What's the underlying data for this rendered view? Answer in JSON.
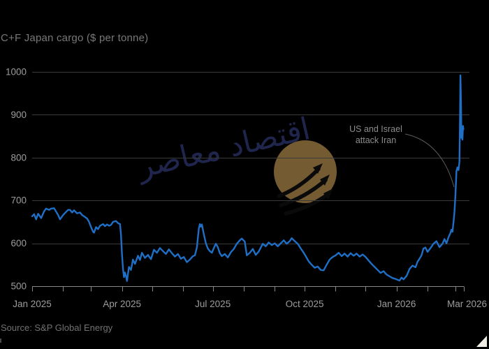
{
  "title": "C+F Japan cargo ($ per tonne)",
  "source": "Source: S&P Global Energy",
  "annotation": {
    "line1": "US and Israel",
    "line2": "attack Iran"
  },
  "watermark": {
    "arabic_text": "اقتصاد معاصر"
  },
  "colors": {
    "background": "#000000",
    "line": "#1e6fc5",
    "gridline": "#3a3a3a",
    "axis": "#888888",
    "tick_label": "#9c9c9c",
    "annotation_text": "#8c8c8c",
    "annotation_curve": "#5e5e5e",
    "watermark_gold": "#7d6136",
    "watermark_arrow": "#0b0b0b",
    "corner_triangle": "#efece4"
  },
  "chart_data": {
    "type": "line",
    "title": "C+F Japan cargo ($ per tonne)",
    "ylabel": "$ per tonne",
    "ylim": [
      500,
      1000
    ],
    "y_ticks": [
      1000,
      900,
      800,
      700,
      600,
      500
    ],
    "x_unit": "days since 2025-01-01",
    "xlim": [
      0,
      433
    ],
    "grid": "horizontal",
    "legend": "none",
    "annotation": "US and Israel attack Iran (points at March 2026 price spike)",
    "x_ticks": [
      {
        "day": 0,
        "label": "Jan 2025"
      },
      {
        "day": 31,
        "label": ""
      },
      {
        "day": 59,
        "label": ""
      },
      {
        "day": 90,
        "label": "Apr 2025"
      },
      {
        "day": 120,
        "label": ""
      },
      {
        "day": 151,
        "label": ""
      },
      {
        "day": 181,
        "label": "Jul 2025"
      },
      {
        "day": 212,
        "label": ""
      },
      {
        "day": 243,
        "label": ""
      },
      {
        "day": 273,
        "label": "Oct 2025"
      },
      {
        "day": 304,
        "label": ""
      },
      {
        "day": 334,
        "label": ""
      },
      {
        "day": 365,
        "label": "Jan 2026"
      },
      {
        "day": 396,
        "label": ""
      },
      {
        "day": 424,
        "label": "Mar 2026"
      }
    ],
    "series": [
      {
        "name": "C+F Japan cargo",
        "color": "#1e6fc5",
        "points": [
          [
            0,
            663
          ],
          [
            2,
            668
          ],
          [
            4,
            656
          ],
          [
            6,
            669
          ],
          [
            9,
            659
          ],
          [
            12,
            675
          ],
          [
            14,
            681
          ],
          [
            17,
            678
          ],
          [
            19,
            681
          ],
          [
            22,
            682
          ],
          [
            24,
            674
          ],
          [
            26,
            666
          ],
          [
            28,
            656
          ],
          [
            31,
            666
          ],
          [
            33,
            671
          ],
          [
            36,
            678
          ],
          [
            38,
            678
          ],
          [
            40,
            672
          ],
          [
            42,
            677
          ],
          [
            45,
            670
          ],
          [
            48,
            672
          ],
          [
            50,
            666
          ],
          [
            52,
            663
          ],
          [
            55,
            658
          ],
          [
            57,
            650
          ],
          [
            59,
            638
          ],
          [
            61,
            627
          ],
          [
            62,
            625
          ],
          [
            64,
            638
          ],
          [
            66,
            633
          ],
          [
            68,
            641
          ],
          [
            71,
            645
          ],
          [
            73,
            640
          ],
          [
            75,
            644
          ],
          [
            77,
            641
          ],
          [
            79,
            643
          ],
          [
            81,
            650
          ],
          [
            84,
            652
          ],
          [
            86,
            647
          ],
          [
            88,
            645
          ],
          [
            89,
            620
          ],
          [
            90,
            575
          ],
          [
            91,
            540
          ],
          [
            92,
            521
          ],
          [
            93,
            532
          ],
          [
            94,
            524
          ],
          [
            95,
            512
          ],
          [
            97,
            545
          ],
          [
            99,
            538
          ],
          [
            101,
            562
          ],
          [
            103,
            552
          ],
          [
            106,
            571
          ],
          [
            108,
            561
          ],
          [
            110,
            578
          ],
          [
            113,
            566
          ],
          [
            116,
            573
          ],
          [
            119,
            563
          ],
          [
            122,
            585
          ],
          [
            125,
            578
          ],
          [
            128,
            589
          ],
          [
            131,
            582
          ],
          [
            134,
            575
          ],
          [
            137,
            586
          ],
          [
            140,
            577
          ],
          [
            143,
            569
          ],
          [
            146,
            575
          ],
          [
            149,
            564
          ],
          [
            152,
            568
          ],
          [
            155,
            556
          ],
          [
            158,
            562
          ],
          [
            161,
            570
          ],
          [
            163,
            572
          ],
          [
            165,
            590
          ],
          [
            166,
            612
          ],
          [
            167,
            635
          ],
          [
            168,
            645
          ],
          [
            169,
            639
          ],
          [
            170,
            644
          ],
          [
            172,
            621
          ],
          [
            174,
            600
          ],
          [
            176,
            588
          ],
          [
            178,
            582
          ],
          [
            180,
            578
          ],
          [
            182,
            589
          ],
          [
            184,
            599
          ],
          [
            186,
            591
          ],
          [
            188,
            577
          ],
          [
            190,
            570
          ],
          [
            193,
            575
          ],
          [
            196,
            567
          ],
          [
            199,
            579
          ],
          [
            202,
            587
          ],
          [
            205,
            599
          ],
          [
            208,
            607
          ],
          [
            210,
            611
          ],
          [
            213,
            604
          ],
          [
            215,
            572
          ],
          [
            218,
            578
          ],
          [
            221,
            587
          ],
          [
            224,
            573
          ],
          [
            227,
            581
          ],
          [
            231,
            599
          ],
          [
            234,
            593
          ],
          [
            237,
            602
          ],
          [
            240,
            596
          ],
          [
            243,
            600
          ],
          [
            246,
            593
          ],
          [
            249,
            600
          ],
          [
            252,
            607
          ],
          [
            255,
            599
          ],
          [
            258,
            605
          ],
          [
            260,
            612
          ],
          [
            263,
            605
          ],
          [
            266,
            599
          ],
          [
            269,
            588
          ],
          [
            272,
            578
          ],
          [
            274,
            570
          ],
          [
            277,
            558
          ],
          [
            280,
            550
          ],
          [
            283,
            543
          ],
          [
            286,
            546
          ],
          [
            289,
            538
          ],
          [
            292,
            537
          ],
          [
            295,
            550
          ],
          [
            298,
            562
          ],
          [
            301,
            568
          ],
          [
            304,
            572
          ],
          [
            307,
            578
          ],
          [
            310,
            570
          ],
          [
            313,
            576
          ],
          [
            316,
            569
          ],
          [
            319,
            577
          ],
          [
            322,
            571
          ],
          [
            325,
            576
          ],
          [
            328,
            569
          ],
          [
            331,
            574
          ],
          [
            334,
            568
          ],
          [
            337,
            560
          ],
          [
            340,
            552
          ],
          [
            343,
            545
          ],
          [
            346,
            538
          ],
          [
            349,
            531
          ],
          [
            352,
            535
          ],
          [
            355,
            527
          ],
          [
            358,
            523
          ],
          [
            361,
            519
          ],
          [
            364,
            517
          ],
          [
            366,
            515
          ],
          [
            368,
            513
          ],
          [
            370,
            520
          ],
          [
            372,
            516
          ],
          [
            375,
            524
          ],
          [
            378,
            540
          ],
          [
            381,
            548
          ],
          [
            384,
            544
          ],
          [
            386,
            557
          ],
          [
            388,
            564
          ],
          [
            390,
            572
          ],
          [
            392,
            588
          ],
          [
            394,
            590
          ],
          [
            396,
            580
          ],
          [
            399,
            589
          ],
          [
            402,
            599
          ],
          [
            405,
            605
          ],
          [
            408,
            591
          ],
          [
            411,
            599
          ],
          [
            413,
            610
          ],
          [
            415,
            600
          ],
          [
            417,
            614
          ],
          [
            419,
            624
          ],
          [
            420,
            632
          ],
          [
            421,
            627
          ],
          [
            422,
            648
          ],
          [
            423,
            674
          ],
          [
            424,
            714
          ],
          [
            425,
            768
          ],
          [
            426,
            777
          ],
          [
            427,
            771
          ],
          [
            428,
            790
          ],
          [
            428.6,
            905
          ],
          [
            429,
            992
          ],
          [
            429.5,
            938
          ],
          [
            430,
            846
          ],
          [
            430.6,
            858
          ],
          [
            431,
            842
          ],
          [
            431.6,
            874
          ],
          [
            432,
            866
          ]
        ]
      }
    ]
  }
}
